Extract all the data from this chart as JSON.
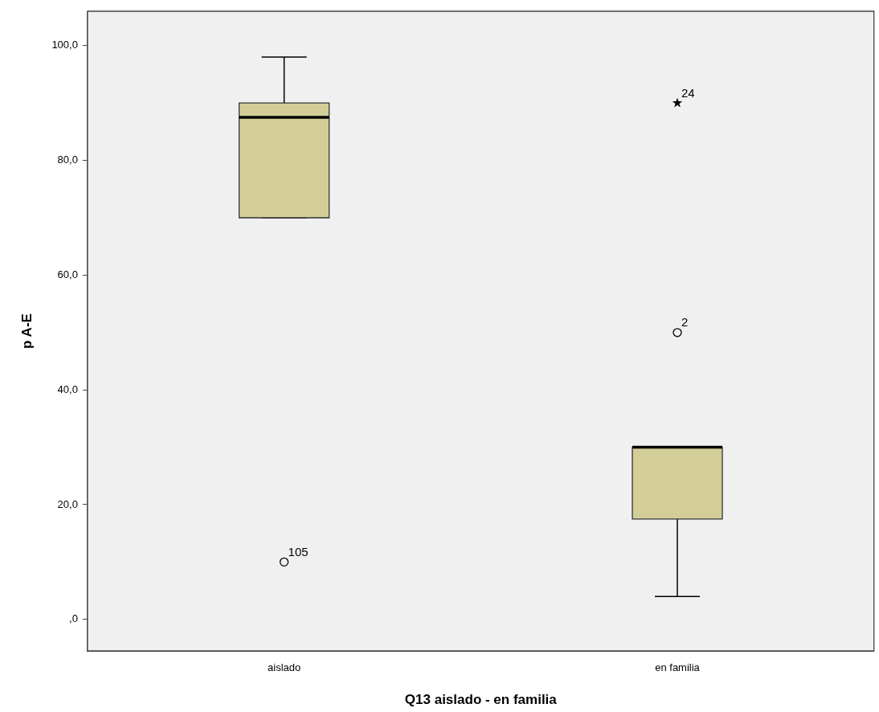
{
  "chart_data": {
    "type": "box",
    "xlabel": "Q13 aislado - en familia",
    "ylabel": "p A-E",
    "categories": [
      "aislado",
      "en familia"
    ],
    "color": "#d3ce97",
    "boxes": [
      {
        "low": 70,
        "q1": 70,
        "median": 87.5,
        "q3": 90,
        "high": 98
      },
      {
        "low": 4,
        "q1": 17.5,
        "median": 30,
        "q3": 30,
        "high": 30
      }
    ],
    "series": [
      {
        "type": "scatter",
        "x": [
          "aislado",
          "en familia"
        ],
        "values": [
          10,
          50
        ],
        "marker": "circle",
        "color": "#000000"
      },
      {
        "type": "scatter",
        "x": [
          "en familia"
        ],
        "values": [
          90
        ],
        "marker": "star",
        "color": "#000000"
      }
    ],
    "ylim": [
      -5.5,
      106
    ],
    "yticks": [
      {
        "value": 0,
        "label": ",0"
      },
      {
        "value": 20,
        "label": "20,0"
      },
      {
        "value": 40,
        "label": "40,0"
      },
      {
        "value": 60,
        "label": "60,0"
      },
      {
        "value": 80,
        "label": "80,0"
      },
      {
        "value": 100,
        "label": "100,0"
      }
    ],
    "annotations": [
      {
        "text": "105",
        "x": "aislado",
        "y": 10
      },
      {
        "text": "2",
        "x": "en familia",
        "y": 50
      },
      {
        "text": "24",
        "x": "en familia",
        "y": 90
      }
    ],
    "grid": false,
    "legend": false
  }
}
